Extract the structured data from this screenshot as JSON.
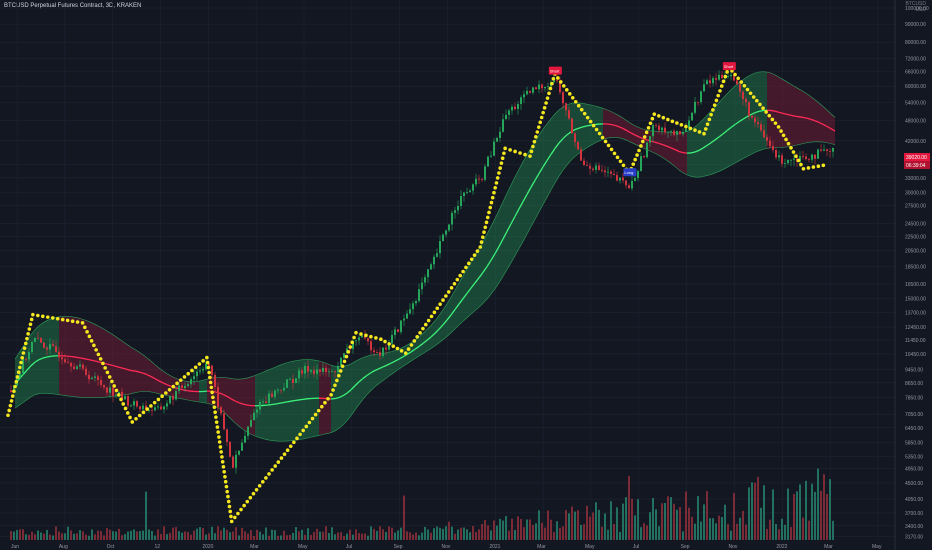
{
  "header": {
    "symbol_line": "BTCUSD Perpetual Futures Contract, 3D, KRAKEN"
  },
  "topright": {
    "line1": "BTCUSD",
    "line2": "USD"
  },
  "price_badges": {
    "last": "39020.00",
    "countdown": "06:39:04"
  },
  "markers": [
    {
      "label": "Short",
      "color": "#e3173e",
      "x": "Apr 2021",
      "y": 66000
    },
    {
      "label": "Short",
      "color": "#e3173e",
      "x": "Nov 2021",
      "y": 68000
    },
    {
      "label": "Long",
      "color": "#283ec9",
      "x": "Jul 2021",
      "y": 34000
    }
  ],
  "chart_data": {
    "type": "candlestick",
    "title": "",
    "y_axis_ticks": [
      "100000.00",
      "90000.00",
      "80000.00",
      "72000.00",
      "66000.00",
      "60000.00",
      "54000.00",
      "48000.00",
      "42000.00",
      "36000.00",
      "33000.00",
      "30000.00",
      "27500.00",
      "24500.00",
      "22500.00",
      "20500.00",
      "18500.00",
      "16500.00",
      "15000.00",
      "13700.00",
      "12450.00",
      "11450.00",
      "10450.00",
      "9450.00",
      "8650.00",
      "7850.00",
      "7050.00",
      "6450.00",
      "5850.00",
      "5350.00",
      "4950.00",
      "4500.00",
      "4050.00",
      "3700.00",
      "3400.00",
      "3170.00"
    ],
    "x_axis_ticks": [
      "Jun",
      "Aug",
      "Oct",
      "12",
      "2020",
      "Mar",
      "May",
      "Jul",
      "Sep",
      "Nov",
      "2021",
      "Mar",
      "May",
      "Jul",
      "Sep",
      "Nov",
      "2022",
      "Mar",
      "May"
    ],
    "y_scale": "log",
    "ylim": [
      3100,
      100000
    ],
    "price_series": [
      {
        "t": "Jun 2019",
        "v": 8000
      },
      {
        "t": "Jul 2019",
        "v": 11500
      },
      {
        "t": "Aug 2019",
        "v": 10500
      },
      {
        "t": "Oct 2019",
        "v": 8300
      },
      {
        "t": "Nov 2019",
        "v": 7500
      },
      {
        "t": "Dec 2019",
        "v": 7200
      },
      {
        "t": "Feb 2020",
        "v": 10000
      },
      {
        "t": "Mar 2020",
        "v": 5000
      },
      {
        "t": "Apr 2020",
        "v": 7500
      },
      {
        "t": "Jun 2020",
        "v": 9500
      },
      {
        "t": "Jul 2020",
        "v": 9200
      },
      {
        "t": "Aug 2020",
        "v": 11700
      },
      {
        "t": "Sep 2020",
        "v": 10500
      },
      {
        "t": "Oct 2020",
        "v": 13500
      },
      {
        "t": "Nov 2020",
        "v": 18500
      },
      {
        "t": "Dec 2020",
        "v": 28000
      },
      {
        "t": "Jan 2021",
        "v": 33000
      },
      {
        "t": "Feb 2021",
        "v": 50000
      },
      {
        "t": "Mar 2021",
        "v": 58000
      },
      {
        "t": "Apr 2021",
        "v": 63000
      },
      {
        "t": "May 2021",
        "v": 37000
      },
      {
        "t": "Jun 2021",
        "v": 34000
      },
      {
        "t": "Jul 2021",
        "v": 31000
      },
      {
        "t": "Aug 2021",
        "v": 47000
      },
      {
        "t": "Sep 2021",
        "v": 43000
      },
      {
        "t": "Oct 2021",
        "v": 61000
      },
      {
        "t": "Nov 2021",
        "v": 66000
      },
      {
        "t": "Dec 2021",
        "v": 47000
      },
      {
        "t": "Jan 2022",
        "v": 37000
      },
      {
        "t": "Feb 2022",
        "v": 38000
      },
      {
        "t": "Mar 2022",
        "v": 39020
      }
    ],
    "supertrend_dots": [
      {
        "t": "Jun 2019",
        "v": 7000
      },
      {
        "t": "Jul 2019",
        "v": 13500
      },
      {
        "t": "Sep 2019",
        "v": 12800
      },
      {
        "t": "Nov 2019",
        "v": 6700
      },
      {
        "t": "Feb 2020",
        "v": 10200
      },
      {
        "t": "Mar 2020",
        "v": 3500
      },
      {
        "t": "Jul 2020",
        "v": 8000
      },
      {
        "t": "Aug 2020",
        "v": 12000
      },
      {
        "t": "Sep 2020",
        "v": 11500
      },
      {
        "t": "Oct 2020",
        "v": 10500
      },
      {
        "t": "Jan 2021",
        "v": 21000
      },
      {
        "t": "Feb 2021",
        "v": 40000
      },
      {
        "t": "Mar 2021",
        "v": 38000
      },
      {
        "t": "Apr 2021",
        "v": 65000
      },
      {
        "t": "Jul 2021",
        "v": 34000
      },
      {
        "t": "Aug 2021",
        "v": 50000
      },
      {
        "t": "Oct 2021",
        "v": 44000
      },
      {
        "t": "Nov 2021",
        "v": 68000
      },
      {
        "t": "Jan 2022",
        "v": 46000
      },
      {
        "t": "Feb 2022",
        "v": 35000
      },
      {
        "t": "Mar 2022",
        "v": 36000
      }
    ],
    "volume_note": "volume histogram bottom (relative heights)"
  }
}
